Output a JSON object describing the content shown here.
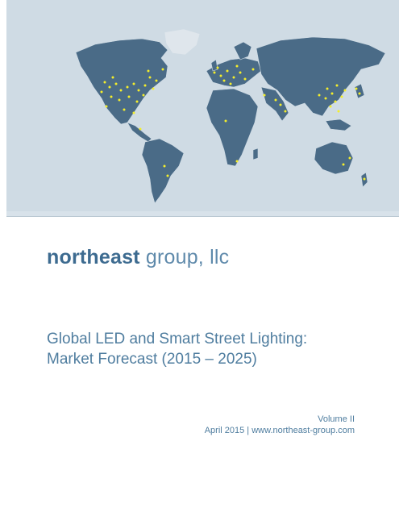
{
  "cover": {
    "brand": {
      "name_bold": "northeast",
      "name_rest": " group, llc"
    },
    "title_line1": "Global LED and Smart Street Lighting:",
    "title_line2": "Market Forecast (2015 – 2025)",
    "volume": "Volume II",
    "date_site": "April 2015 | www.northeast-group.com"
  },
  "colors": {
    "ocean": "#cfdbe4",
    "land": "#4a6b87",
    "highlight": "#f4ee2a",
    "brand_blue": "#4f7d9f"
  }
}
